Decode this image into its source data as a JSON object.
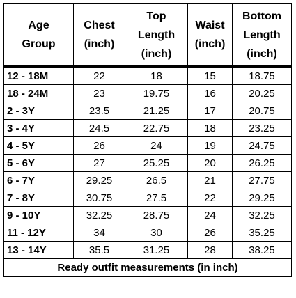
{
  "table": {
    "headers": [
      [
        "Age",
        "Group"
      ],
      [
        "Chest",
        "(inch)"
      ],
      [
        "Top",
        "Length",
        "(inch)"
      ],
      [
        "Waist",
        "(inch)"
      ],
      [
        "Bottom",
        "Length",
        "(inch)"
      ]
    ],
    "rows": [
      [
        "12 - 18M",
        "22",
        "18",
        "15",
        "18.75"
      ],
      [
        "18 - 24M",
        "23",
        "19.75",
        "16",
        "20.25"
      ],
      [
        "2 - 3Y",
        "23.5",
        "21.25",
        "17",
        "20.75"
      ],
      [
        "3 - 4Y",
        "24.5",
        "22.75",
        "18",
        "23.25"
      ],
      [
        "4 - 5Y",
        "26",
        "24",
        "19",
        "24.75"
      ],
      [
        "5 - 6Y",
        "27",
        "25.25",
        "20",
        "26.25"
      ],
      [
        "6 - 7Y",
        "29.25",
        "26.5",
        "21",
        "27.75"
      ],
      [
        "7 - 8Y",
        "30.75",
        "27.5",
        "22",
        "29.25"
      ],
      [
        "9 - 10Y",
        "32.25",
        "28.75",
        "24",
        "32.25"
      ],
      [
        "11 - 12Y",
        "34",
        "30",
        "26",
        "35.25"
      ],
      [
        "13 - 14Y",
        "35.5",
        "31.25",
        "28",
        "38.25"
      ]
    ],
    "caption": "Ready outfit measurements (in inch)"
  }
}
